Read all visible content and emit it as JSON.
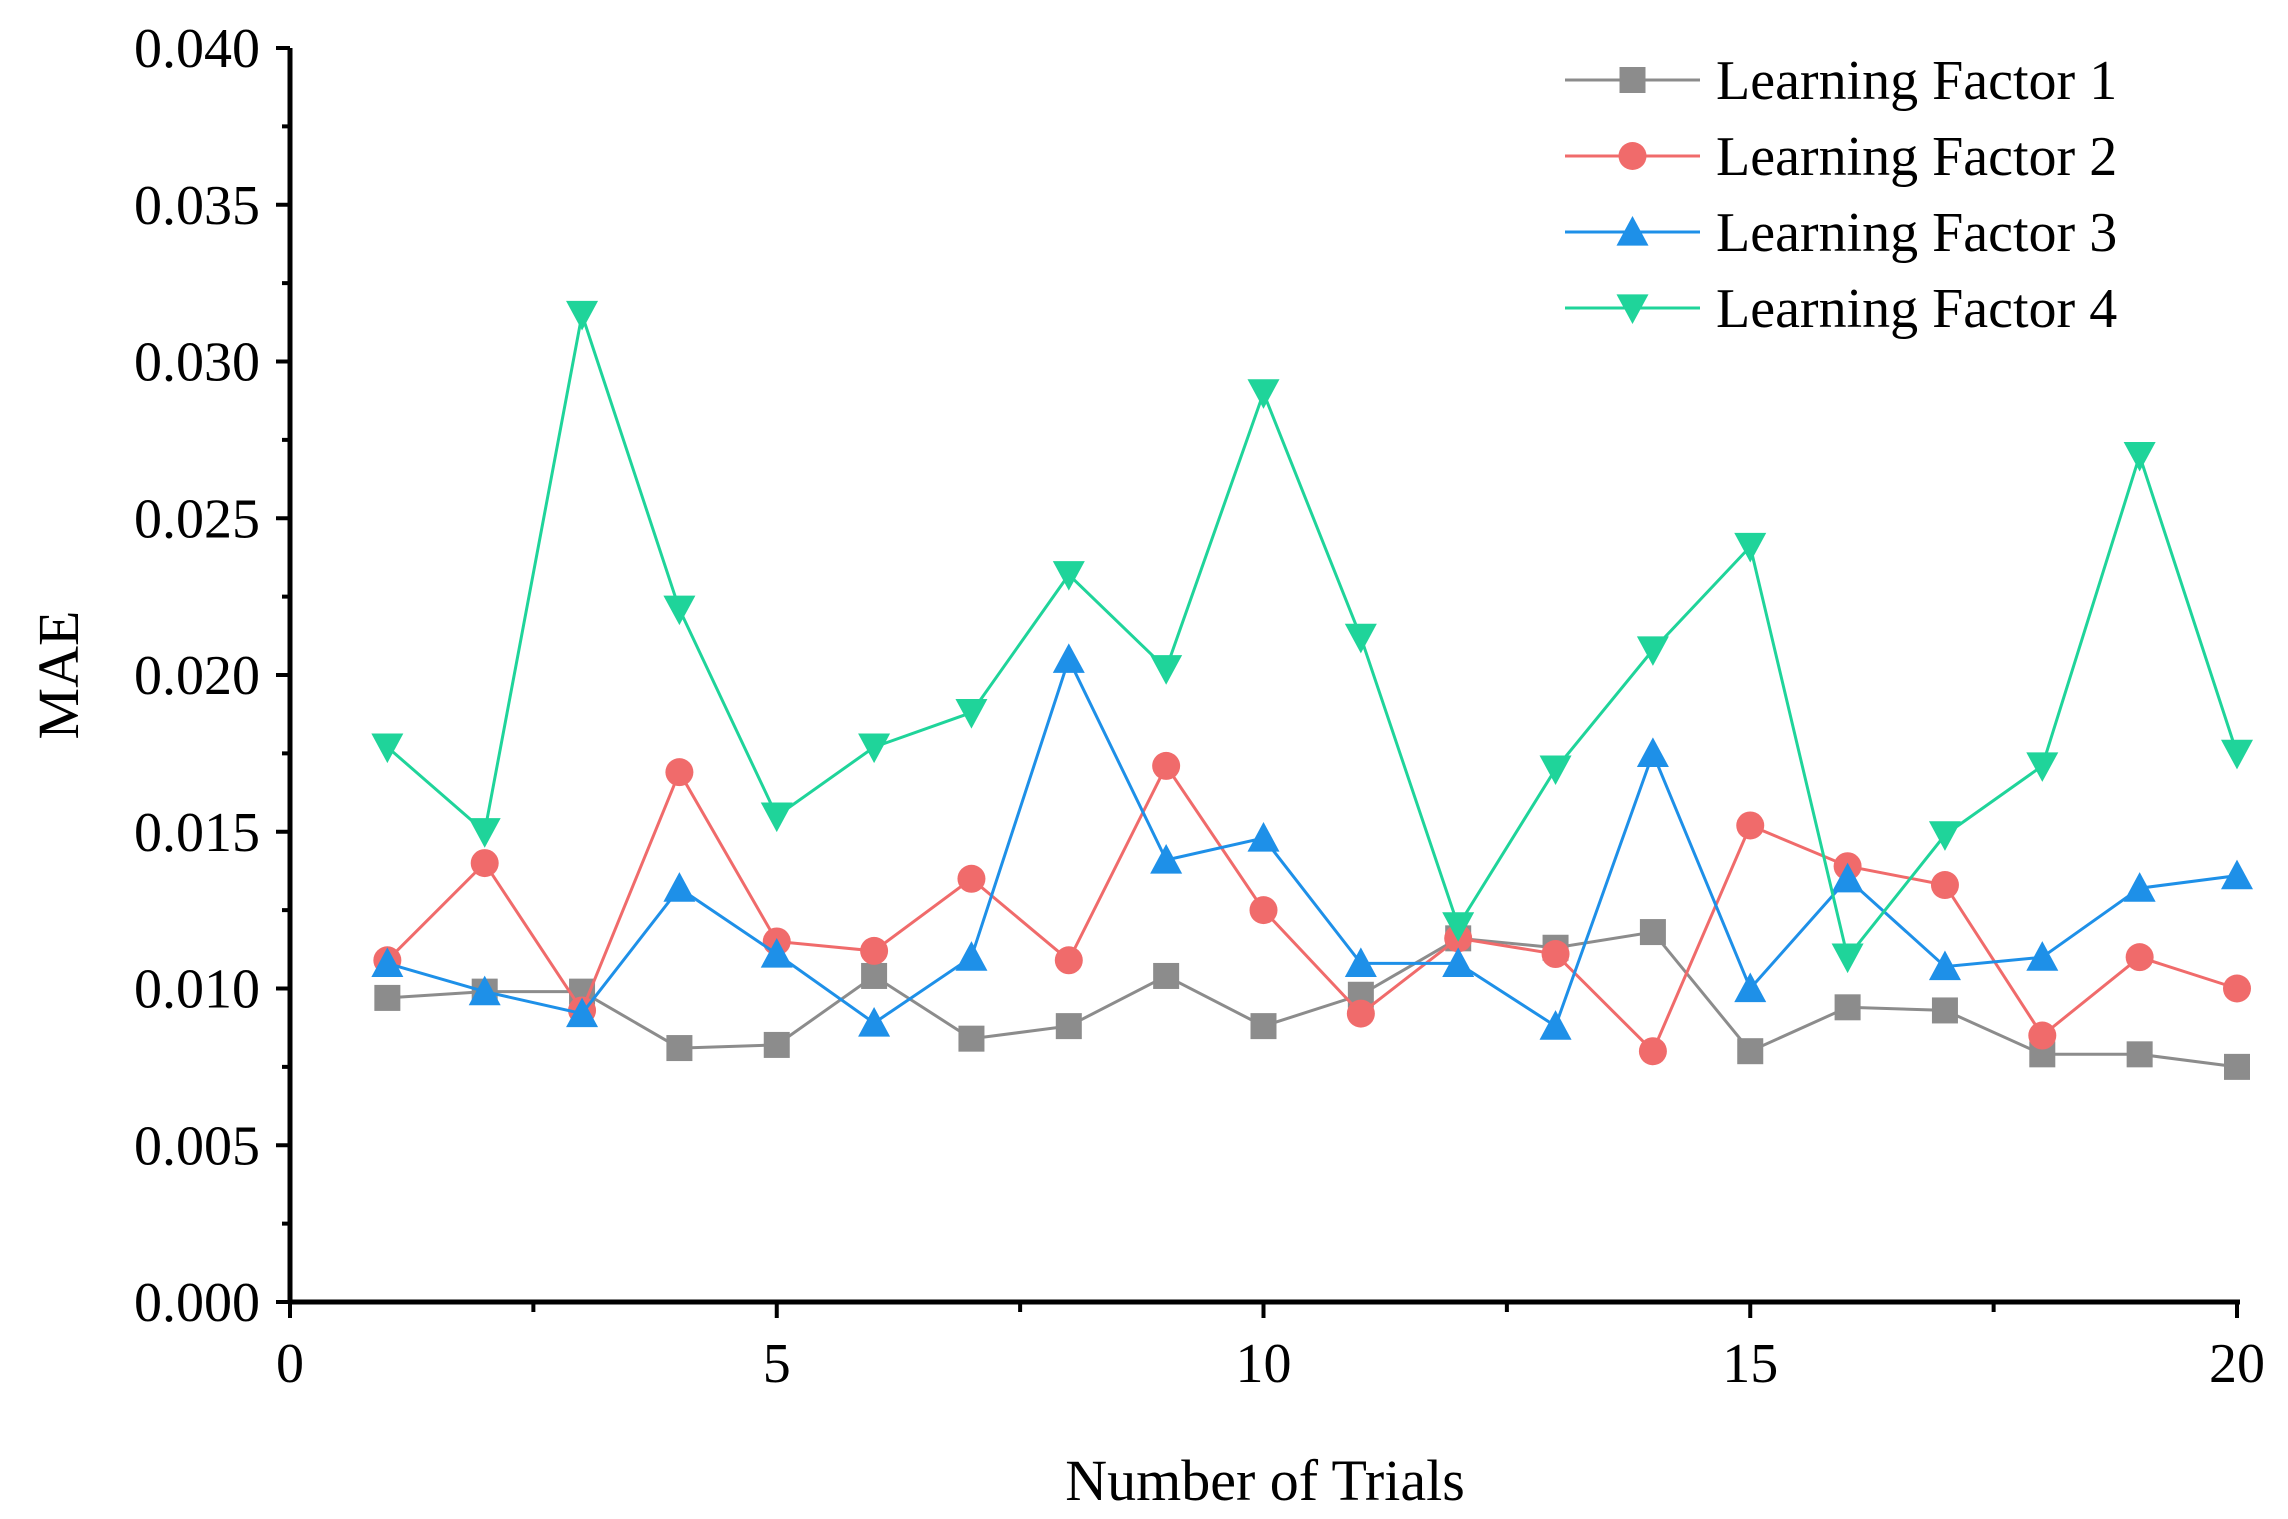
{
  "chart_data": {
    "type": "line",
    "title": "",
    "xlabel": "Number of Trials",
    "ylabel": "MAE",
    "xlim": [
      0,
      20
    ],
    "ylim": [
      0,
      0.04
    ],
    "x_ticks": [
      0,
      5,
      10,
      15,
      20
    ],
    "x_tick_labels": [
      "0",
      "5",
      "10",
      "15",
      "20"
    ],
    "y_ticks": [
      0,
      0.005,
      0.01,
      0.015,
      0.02,
      0.025,
      0.03,
      0.035,
      0.04
    ],
    "y_tick_labels": [
      "0.000",
      "0.005",
      "0.010",
      "0.015",
      "0.020",
      "0.025",
      "0.030",
      "0.035",
      "0.040"
    ],
    "grid": false,
    "legend_position": "top-right",
    "x": [
      1,
      2,
      3,
      4,
      5,
      6,
      7,
      8,
      9,
      10,
      11,
      12,
      13,
      14,
      15,
      16,
      17,
      18,
      19,
      20
    ],
    "series": [
      {
        "name": "Learning Factor 1",
        "color": "#8c8c8c",
        "marker": "square",
        "values": [
          0.0097,
          0.0099,
          0.0099,
          0.0081,
          0.0082,
          0.0104,
          0.0084,
          0.0088,
          0.0104,
          0.0088,
          0.0098,
          0.0116,
          0.0113,
          0.0118,
          0.008,
          0.0094,
          0.0093,
          0.0079,
          0.0079,
          0.0075
        ]
      },
      {
        "name": "Learning Factor 2",
        "color": "#f06b6b",
        "marker": "circle",
        "values": [
          0.0109,
          0.014,
          0.0093,
          0.0169,
          0.0115,
          0.0112,
          0.0135,
          0.0109,
          0.0171,
          0.0125,
          0.0092,
          0.0116,
          0.0111,
          0.008,
          0.0152,
          0.0139,
          0.0133,
          0.0085,
          0.011,
          0.01
        ]
      },
      {
        "name": "Learning Factor 3",
        "color": "#1e90e8",
        "marker": "triangle-up",
        "values": [
          0.0108,
          0.0099,
          0.0092,
          0.0132,
          0.0111,
          0.0089,
          0.011,
          0.0205,
          0.0141,
          0.0148,
          0.0108,
          0.0108,
          0.0088,
          0.0175,
          0.01,
          0.0135,
          0.0107,
          0.011,
          0.0132,
          0.0136
        ]
      },
      {
        "name": "Learning Factor 4",
        "color": "#1fd49a",
        "marker": "triangle-down",
        "values": [
          0.0177,
          0.015,
          0.0315,
          0.0221,
          0.0155,
          0.0177,
          0.0188,
          0.0232,
          0.0202,
          0.029,
          0.0212,
          0.012,
          0.017,
          0.0208,
          0.0241,
          0.011,
          0.0149,
          0.0171,
          0.027,
          0.0175
        ]
      }
    ]
  }
}
